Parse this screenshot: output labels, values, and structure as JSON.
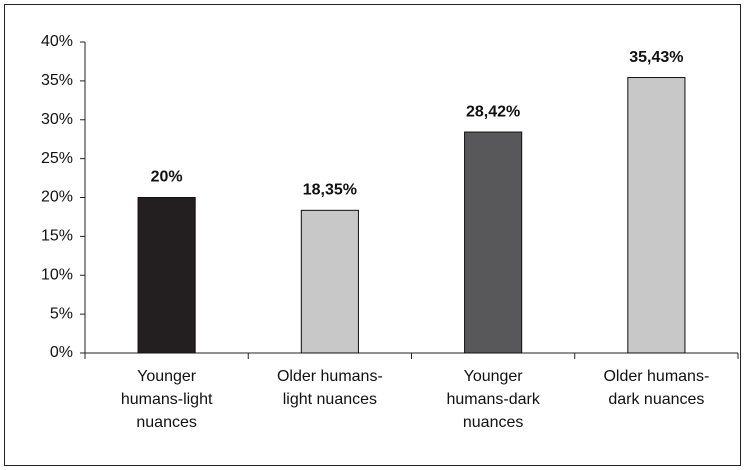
{
  "chart_data": {
    "type": "bar",
    "categories": [
      "Younger humans-light nuances",
      "Older humans-light nuances",
      "Younger humans-dark nuances",
      "Older humans-dark nuances"
    ],
    "values": [
      20,
      18.35,
      28.42,
      35.43
    ],
    "value_labels": [
      "20%",
      "18,35%",
      "28,42%",
      "35,43%"
    ],
    "colors": [
      "#231f20",
      "#c8c8c8",
      "#58585a",
      "#c8c8c8"
    ],
    "ylim": [
      0,
      40
    ],
    "yticks": [
      {
        "value": 0,
        "label": "0%"
      },
      {
        "value": 5,
        "label": "5%"
      },
      {
        "value": 10,
        "label": "10%"
      },
      {
        "value": 15,
        "label": "15%"
      },
      {
        "value": 20,
        "label": "20%"
      },
      {
        "value": 25,
        "label": "25%"
      },
      {
        "value": 30,
        "label": "30%"
      },
      {
        "value": 35,
        "label": "35%"
      },
      {
        "value": 40,
        "label": "40%"
      }
    ],
    "grid": false
  }
}
